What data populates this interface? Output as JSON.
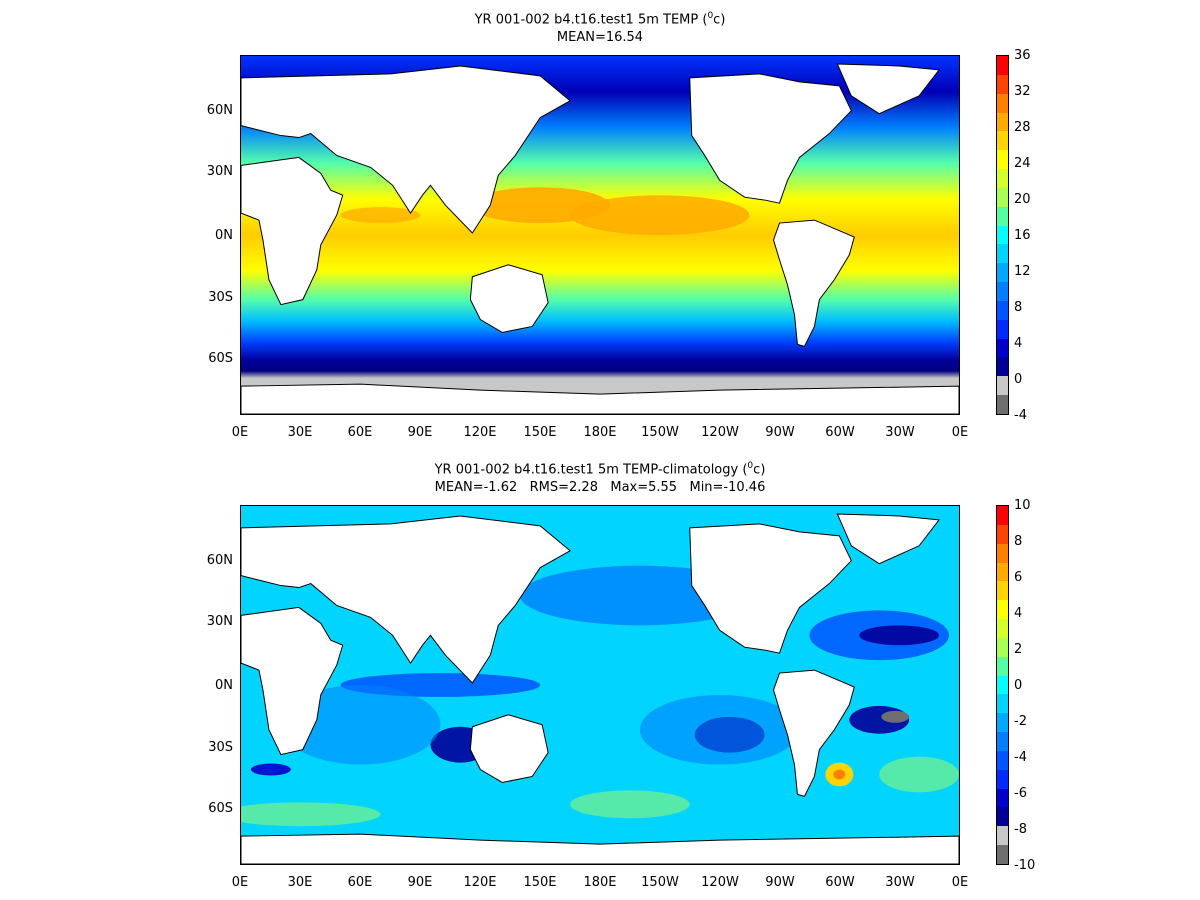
{
  "panels": [
    {
      "id": "temp",
      "title_prefix": "YR 001-002 b4.t16.test1 5m TEMP (",
      "title_unit_sup": "0",
      "title_unit": "c",
      "title_suffix": ")",
      "stats": "MEAN=16.54",
      "colorbar_labels": [
        "36",
        "32",
        "28",
        "24",
        "20",
        "16",
        "12",
        "8",
        "4",
        "0",
        "-4"
      ],
      "colorbar_colors": [
        "#ff0000",
        "#ff4400",
        "#ff7f00",
        "#ffaa00",
        "#ffd400",
        "#ffff00",
        "#d4ff2a",
        "#aaff55",
        "#55ff9f",
        "#00ffff",
        "#00d4ff",
        "#00aaff",
        "#0080ff",
        "#0055ff",
        "#002aff",
        "#0000cc",
        "#000099",
        "#c8c8c8",
        "#6e6e6e"
      ]
    },
    {
      "id": "anom",
      "title_prefix": "YR 001-002 b4.t16.test1 5m TEMP-climatology (",
      "title_unit_sup": "0",
      "title_unit": "c",
      "title_suffix": ")",
      "stats": "MEAN=-1.62   RMS=2.28   Max=5.55   Min=-10.46",
      "colorbar_labels": [
        "10",
        "8",
        "6",
        "4",
        "2",
        "0",
        "-2",
        "-4",
        "-6",
        "-8",
        "-10"
      ],
      "colorbar_colors": [
        "#ff0000",
        "#ff4400",
        "#ff7f00",
        "#ffaa00",
        "#ffd400",
        "#ffff00",
        "#d4ff2a",
        "#aaff55",
        "#55ff9f",
        "#00ffff",
        "#00d4ff",
        "#00aaff",
        "#0080ff",
        "#0055ff",
        "#002aff",
        "#0000cc",
        "#000099",
        "#c8c8c8",
        "#6e6e6e"
      ]
    }
  ],
  "x_ticks": [
    "0E",
    "30E",
    "60E",
    "90E",
    "120E",
    "150E",
    "180E",
    "150W",
    "120W",
    "90W",
    "60W",
    "30W",
    "0E"
  ],
  "y_ticks": [
    "60N",
    "30N",
    "0N",
    "30S",
    "60S"
  ],
  "colors": {
    "land": "#ffffff",
    "ice": "#c8c8c8",
    "coast": "#000000"
  }
}
